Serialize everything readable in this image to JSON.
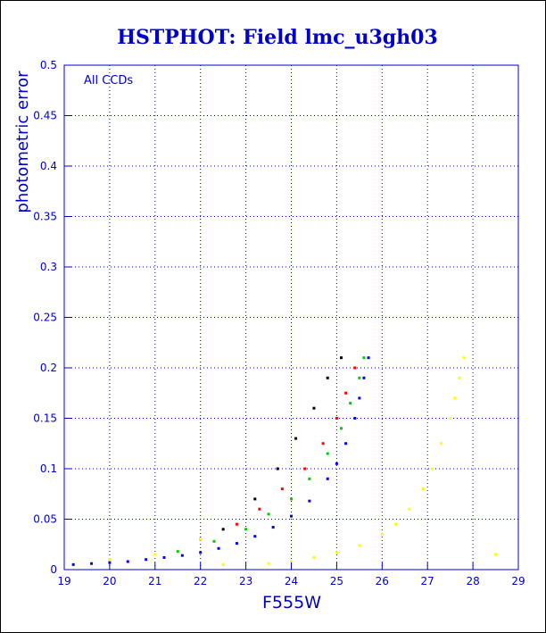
{
  "chart_data": {
    "type": "scatter",
    "title": "HSTPHOT: Field lmc_u3gh03",
    "xlabel": "F555W",
    "ylabel": "photometric error",
    "annotation": "All CCDs",
    "xlim": [
      19,
      29
    ],
    "ylim": [
      0,
      0.5
    ],
    "x_ticks": [
      19,
      20,
      21,
      22,
      23,
      24,
      25,
      26,
      27,
      28,
      29
    ],
    "y_ticks": [
      0,
      0.05,
      0.1,
      0.15,
      0.2,
      0.25,
      0.3,
      0.35,
      0.4,
      0.45,
      0.5
    ],
    "grid": true,
    "colors": {
      "axis": "#0000cc",
      "title": "#0000cc",
      "grid": "#0000cc",
      "series_blue": "#0000ff",
      "series_green": "#00cc00",
      "series_red": "#ff0000",
      "series_black": "#000000",
      "series_yellow": "#ffff00"
    },
    "series": [
      {
        "color": "#0000ff",
        "points": [
          [
            19.2,
            0.005
          ],
          [
            19.6,
            0.006
          ],
          [
            20.0,
            0.007
          ],
          [
            20.4,
            0.008
          ],
          [
            20.8,
            0.01
          ],
          [
            21.2,
            0.012
          ],
          [
            21.6,
            0.014
          ],
          [
            22.0,
            0.017
          ],
          [
            22.4,
            0.021
          ],
          [
            22.8,
            0.026
          ],
          [
            23.2,
            0.033
          ],
          [
            23.6,
            0.042
          ],
          [
            24.0,
            0.053
          ],
          [
            24.4,
            0.068
          ],
          [
            24.8,
            0.09
          ],
          [
            25.0,
            0.105
          ],
          [
            25.2,
            0.125
          ],
          [
            25.4,
            0.15
          ],
          [
            25.5,
            0.17
          ],
          [
            25.6,
            0.19
          ],
          [
            25.7,
            0.21
          ]
        ]
      },
      {
        "color": "#00cc00",
        "points": [
          [
            21.5,
            0.018
          ],
          [
            22.3,
            0.028
          ],
          [
            23.0,
            0.04
          ],
          [
            23.5,
            0.055
          ],
          [
            24.0,
            0.07
          ],
          [
            24.4,
            0.09
          ],
          [
            24.8,
            0.115
          ],
          [
            25.1,
            0.14
          ],
          [
            25.3,
            0.165
          ],
          [
            25.5,
            0.19
          ],
          [
            25.6,
            0.21
          ]
        ]
      },
      {
        "color": "#ff0000",
        "points": [
          [
            22.0,
            0.03
          ],
          [
            22.8,
            0.045
          ],
          [
            23.3,
            0.06
          ],
          [
            23.8,
            0.08
          ],
          [
            24.3,
            0.1
          ],
          [
            24.7,
            0.125
          ],
          [
            25.0,
            0.15
          ],
          [
            25.2,
            0.175
          ],
          [
            25.4,
            0.2
          ]
        ]
      },
      {
        "color": "#000000",
        "points": [
          [
            22.5,
            0.04
          ],
          [
            23.2,
            0.07
          ],
          [
            23.7,
            0.1
          ],
          [
            24.1,
            0.13
          ],
          [
            24.5,
            0.16
          ],
          [
            24.8,
            0.19
          ],
          [
            25.1,
            0.21
          ]
        ]
      },
      {
        "color": "#ffff00",
        "points": [
          [
            20.0,
            0.01
          ],
          [
            21.0,
            0.015
          ],
          [
            22.0,
            0.03
          ],
          [
            22.5,
            0.005
          ],
          [
            23.5,
            0.006
          ],
          [
            24.0,
            0.008
          ],
          [
            24.5,
            0.012
          ],
          [
            25.0,
            0.017
          ],
          [
            25.5,
            0.024
          ],
          [
            26.0,
            0.035
          ],
          [
            26.3,
            0.045
          ],
          [
            26.6,
            0.06
          ],
          [
            26.9,
            0.08
          ],
          [
            27.1,
            0.1
          ],
          [
            27.3,
            0.125
          ],
          [
            27.5,
            0.15
          ],
          [
            27.6,
            0.17
          ],
          [
            27.7,
            0.19
          ],
          [
            27.8,
            0.21
          ],
          [
            28.5,
            0.015
          ]
        ]
      }
    ]
  }
}
